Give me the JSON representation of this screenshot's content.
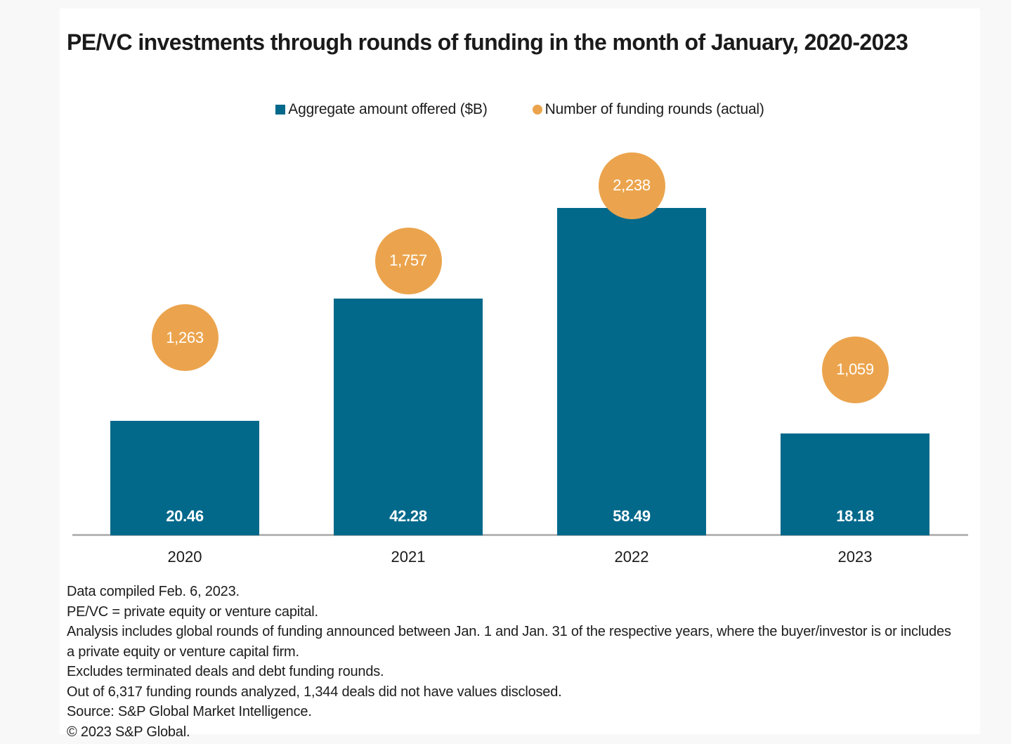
{
  "title": "PE/VC investments through rounds of funding in the month of January, 2020-2023",
  "legend": {
    "items": [
      {
        "label": "Aggregate amount offered ($B)",
        "marker": "square",
        "color": "#03698b"
      },
      {
        "label": "Number of funding rounds (actual)",
        "marker": "circle",
        "color": "#eba44d"
      }
    ]
  },
  "colors": {
    "bar_teal": "#03698b",
    "circle_orange": "#eba44d",
    "axis_gray": "#b5b5b5",
    "text_dark": "#1a1a1a",
    "label_white": "#ffffff"
  },
  "chart_data": {
    "type": "bar",
    "title": "PE/VC investments through rounds of funding in the month of January, 2020-2023",
    "categories": [
      "2020",
      "2021",
      "2022",
      "2023"
    ],
    "series": [
      {
        "name": "Aggregate amount offered ($B)",
        "type": "bar",
        "color": "#03698b",
        "values": [
          20.46,
          42.28,
          58.49,
          18.18
        ]
      },
      {
        "name": "Number of funding rounds (actual)",
        "type": "point",
        "color": "#eba44d",
        "values": [
          1263,
          1757,
          2238,
          1059
        ]
      }
    ],
    "xlabel": "",
    "ylabel": "",
    "ylim_bar": [
      0,
      60
    ],
    "ylim_rounds": [
      0,
      2400
    ],
    "grid": false,
    "legend_position": "top",
    "data_labels": true
  },
  "footnotes": {
    "lines": [
      "Data compiled Feb. 6, 2023.",
      "PE/VC = private equity or venture capital.",
      "Analysis includes global rounds of funding announced between Jan. 1 and Jan. 31 of the respective years, where the buyer/investor is or includes a private equity or venture capital firm.",
      "Excludes terminated deals and debt funding rounds.",
      "Out of 6,317 funding rounds analyzed, 1,344 deals did not have values disclosed.",
      "Source: S&P Global Market Intelligence.",
      "© 2023 S&P Global."
    ]
  }
}
